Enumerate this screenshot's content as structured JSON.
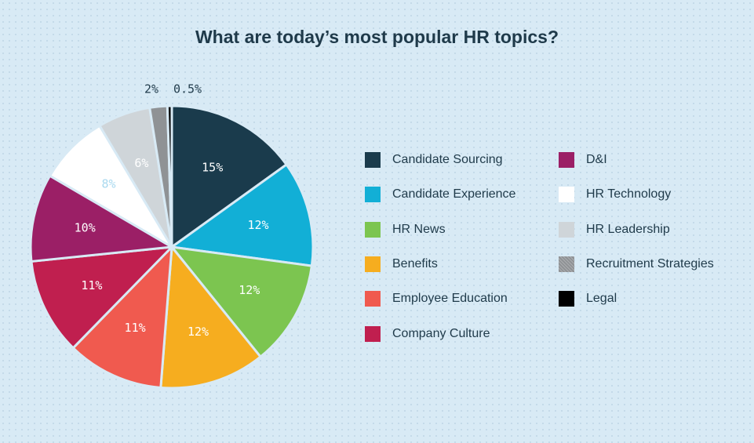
{
  "chart_data": {
    "type": "pie",
    "title": "What are today’s most popular HR topics?",
    "slices": [
      {
        "label": "Candidate Sourcing",
        "value": 15,
        "display": "15%",
        "color": "#1a3b4c",
        "text_color": "#ffffff"
      },
      {
        "label": "Candidate Experience",
        "value": 12,
        "display": "12%",
        "color": "#12afd6",
        "text_color": "#ffffff"
      },
      {
        "label": "HR News",
        "value": 12,
        "display": "12%",
        "color": "#7cc550",
        "text_color": "#ffffff"
      },
      {
        "label": "Benefits",
        "value": 12,
        "display": "12%",
        "color": "#f6ad1f",
        "text_color": "#ffffff"
      },
      {
        "label": "Employee Education",
        "value": 11,
        "display": "11%",
        "color": "#f05a4f",
        "text_color": "#ffffff"
      },
      {
        "label": "Company Culture",
        "value": 11,
        "display": "11%",
        "color": "#c01f4f",
        "text_color": "#ffffff"
      },
      {
        "label": "D&I",
        "value": 10,
        "display": "10%",
        "color": "#9b1f66",
        "text_color": "#ffffff"
      },
      {
        "label": "HR Technology",
        "value": 8,
        "display": "8%",
        "color": "#ffffff",
        "text_color": "#a9d9ef"
      },
      {
        "label": "HR Leadership",
        "value": 6,
        "display": "6%",
        "color": "#cfd5d9",
        "text_color": "#ffffff"
      },
      {
        "label": "Recruitment Strategies",
        "value": 2,
        "display": "2%",
        "color": "#8f9295",
        "text_color": "#1f3a4a"
      },
      {
        "label": "Legal",
        "value": 0.5,
        "display": "0.5%",
        "color": "#000000",
        "text_color": "#1f3a4a"
      }
    ],
    "legend_position": "right",
    "legend_columns": [
      [
        "Candidate Sourcing",
        "Candidate Experience",
        "HR News",
        "Benefits",
        "Employee Education",
        "Company Culture"
      ],
      [
        "D&I",
        "HR Technology",
        "HR Leadership",
        "Recruitment Strategies",
        "Legal"
      ]
    ]
  }
}
